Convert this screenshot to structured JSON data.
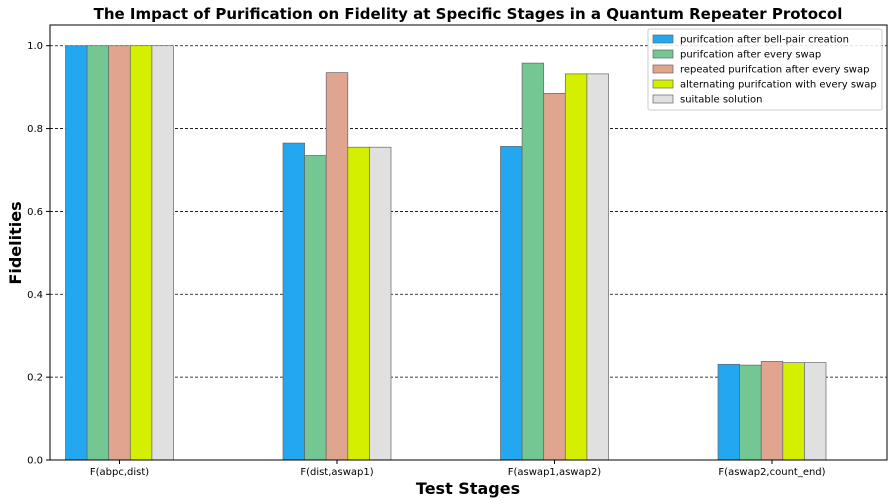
{
  "chart_data": {
    "type": "bar",
    "title": "The Impact of Purification on Fidelity at Specific Stages in a Quantum Repeater Protocol",
    "xlabel": "Test Stages",
    "ylabel": "Fidelities",
    "ylim": [
      0,
      1.05
    ],
    "yticks": [
      "0.0",
      "0.2",
      "0.4",
      "0.6",
      "0.8",
      "1.0"
    ],
    "categories": [
      "F(abpc,dist)",
      "F(dist,aswap1)",
      "F(aswap1,aswap2)",
      "F(aswap2,count_end)"
    ],
    "grid": "horizontal dashed",
    "legend_position": "top-right",
    "series": [
      {
        "name": "purifcation after bell-pair creation",
        "color": "#22a7f0",
        "values": [
          1.0,
          0.765,
          0.757,
          0.231
        ]
      },
      {
        "name": "purifcation after every swap",
        "color": "#74c793",
        "values": [
          1.0,
          0.735,
          0.958,
          0.229
        ]
      },
      {
        "name": "repeated purifcation after every swap",
        "color": "#e0a58e",
        "values": [
          1.0,
          0.935,
          0.885,
          0.238
        ]
      },
      {
        "name": "alternating purifcation with every swap",
        "color": "#d4f000",
        "values": [
          1.0,
          0.755,
          0.932,
          0.235
        ]
      },
      {
        "name": "suitable solution",
        "color": "#e0e0e0",
        "values": [
          1.0,
          0.755,
          0.932,
          0.235
        ]
      }
    ]
  }
}
